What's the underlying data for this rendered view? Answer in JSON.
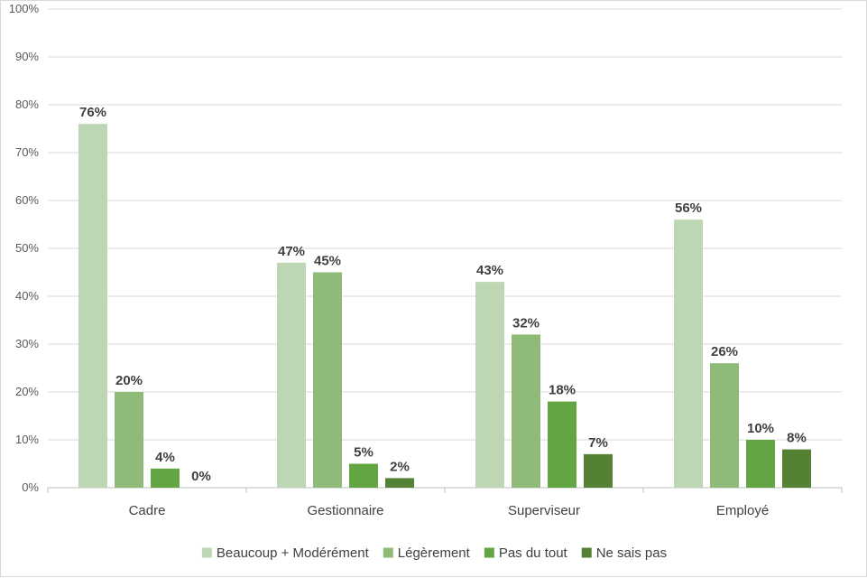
{
  "chart_data": {
    "type": "bar",
    "categories": [
      "Cadre",
      "Gestionnaire",
      "Superviseur",
      "Employé"
    ],
    "series": [
      {
        "name": "Beaucoup + Modérément",
        "color": "#bdd7b4",
        "values": [
          76,
          47,
          43,
          56
        ],
        "labels": [
          "76%",
          "47%",
          "43%",
          "56%"
        ]
      },
      {
        "name": "Légèrement",
        "color": "#8fbb78",
        "values": [
          20,
          45,
          32,
          26
        ],
        "labels": [
          "20%",
          "45%",
          "32%",
          "26%"
        ]
      },
      {
        "name": "Pas du tout",
        "color": "#64a543",
        "values": [
          4,
          5,
          18,
          10
        ],
        "labels": [
          "4%",
          "5%",
          "18%",
          "10%"
        ]
      },
      {
        "name": "Ne sais pas",
        "color": "#548235",
        "values": [
          0,
          2,
          7,
          8
        ],
        "labels": [
          "0%",
          "2%",
          "7%",
          "8%"
        ]
      }
    ],
    "ylim": [
      0,
      100
    ],
    "yticks": [
      0,
      10,
      20,
      30,
      40,
      50,
      60,
      70,
      80,
      90,
      100
    ],
    "ytick_labels": [
      "0%",
      "10%",
      "20%",
      "30%",
      "40%",
      "50%",
      "60%",
      "70%",
      "80%",
      "90%",
      "100%"
    ],
    "grid": true,
    "legend": "bottom"
  }
}
